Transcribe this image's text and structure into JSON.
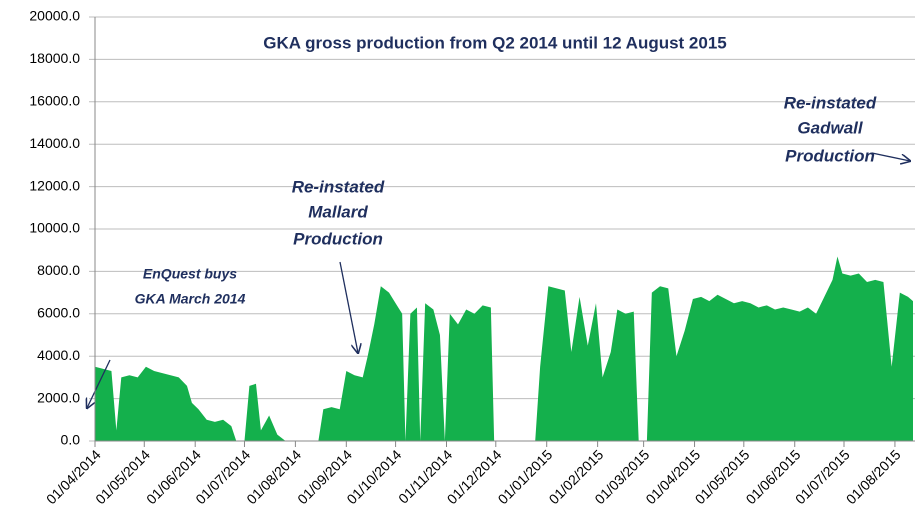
{
  "chart_data": {
    "type": "area",
    "title": "GKA gross production from Q2 2014 until 12 August 2015",
    "color": "#14b04c",
    "grid": true,
    "ylim": [
      0,
      20000
    ],
    "yticks": [
      {
        "value": 0,
        "label": "0.0"
      },
      {
        "value": 2000,
        "label": "2000.0"
      },
      {
        "value": 4000,
        "label": "4000.0"
      },
      {
        "value": 6000,
        "label": "6000.0"
      },
      {
        "value": 8000,
        "label": "8000.0"
      },
      {
        "value": 10000,
        "label": "10000.0"
      },
      {
        "value": 12000,
        "label": "12000.0"
      },
      {
        "value": 14000,
        "label": "14000.0"
      },
      {
        "value": 16000,
        "label": "16000.0"
      },
      {
        "value": 18000,
        "label": "18000.0"
      },
      {
        "value": 20000,
        "label": "20000.0"
      }
    ],
    "xlim": [
      "01/04/2014",
      "12/08/2015"
    ],
    "xticks": [
      "01/04/2014",
      "01/05/2014",
      "01/06/2014",
      "01/07/2014",
      "01/08/2014",
      "01/09/2014",
      "01/10/2014",
      "01/11/2014",
      "01/12/2014",
      "01/01/2015",
      "01/02/2015",
      "01/03/2015",
      "01/04/2015",
      "01/05/2015",
      "01/06/2015",
      "01/07/2015",
      "01/08/2015"
    ],
    "annotations": [
      {
        "lines": [
          "EnQuest buys",
          "GKA March 2014"
        ]
      },
      {
        "lines": [
          "Re-instated",
          "Mallard",
          "Production"
        ]
      },
      {
        "lines": [
          "Re-instated",
          "Gadwall",
          "Production"
        ]
      }
    ],
    "x": [
      "01/04/2014",
      "06/04/2014",
      "11/04/2014",
      "14/04/2014",
      "17/04/2014",
      "22/04/2014",
      "27/04/2014",
      "02/05/2014",
      "07/05/2014",
      "12/05/2014",
      "17/05/2014",
      "22/05/2014",
      "27/05/2014",
      "30/05/2014",
      "03/06/2014",
      "08/06/2014",
      "13/06/2014",
      "18/06/2014",
      "23/06/2014",
      "26/06/2014",
      "01/07/2014",
      "04/07/2014",
      "08/07/2014",
      "11/07/2014",
      "16/07/2014",
      "21/07/2014",
      "26/07/2014",
      "01/08/2014",
      "15/08/2014",
      "18/08/2014",
      "23/08/2014",
      "28/08/2014",
      "01/09/2014",
      "06/09/2014",
      "11/09/2014",
      "14/09/2014",
      "18/09/2014",
      "22/09/2014",
      "27/09/2014",
      "01/10/2014",
      "05/10/2014",
      "07/10/2014",
      "10/10/2014",
      "14/10/2014",
      "16/10/2014",
      "19/10/2014",
      "24/10/2014",
      "28/10/2014",
      "31/10/2014",
      "03/11/2014",
      "08/11/2014",
      "13/11/2014",
      "18/11/2014",
      "23/11/2014",
      "28/11/2014",
      "30/11/2014",
      "25/12/2014",
      "28/12/2014",
      "02/01/2015",
      "07/01/2015",
      "12/01/2015",
      "16/01/2015",
      "21/01/2015",
      "26/01/2015",
      "31/01/2015",
      "04/02/2015",
      "09/02/2015",
      "13/02/2015",
      "18/02/2015",
      "23/02/2015",
      "26/02/2015",
      "03/03/2015",
      "06/03/2015",
      "11/03/2015",
      "16/03/2015",
      "21/03/2015",
      "26/03/2015",
      "31/03/2015",
      "05/04/2015",
      "10/04/2015",
      "15/04/2015",
      "20/04/2015",
      "25/04/2015",
      "30/04/2015",
      "05/05/2015",
      "10/05/2015",
      "15/05/2015",
      "20/05/2015",
      "25/05/2015",
      "30/05/2015",
      "04/06/2015",
      "09/06/2015",
      "14/06/2015",
      "19/06/2015",
      "24/06/2015",
      "27/06/2015",
      "30/06/2015",
      "05/07/2015",
      "10/07/2015",
      "15/07/2015",
      "20/07/2015",
      "25/07/2015",
      "30/07/2015",
      "04/08/2015",
      "09/08/2015",
      "12/08/2015"
    ],
    "values": [
      3500,
      3400,
      3300,
      500,
      3000,
      3100,
      3000,
      3500,
      3300,
      3200,
      3100,
      3000,
      2600,
      1800,
      1500,
      1000,
      900,
      1000,
      700,
      0,
      0,
      2600,
      2700,
      500,
      1200,
      300,
      0,
      0,
      0,
      1500,
      1600,
      1500,
      3300,
      3100,
      3000,
      4000,
      5500,
      7300,
      7000,
      6500,
      6000,
      0,
      6000,
      6300,
      0,
      6500,
      6200,
      5000,
      0,
      6000,
      5500,
      6200,
      6000,
      6400,
      6300,
      0,
      0,
      3500,
      7300,
      7200,
      7100,
      4200,
      6800,
      4500,
      6500,
      3000,
      4200,
      6200,
      6000,
      6100,
      0,
      0,
      7000,
      7300,
      7200,
      4000,
      5200,
      6700,
      6800,
      6600,
      6900,
      6700,
      6500,
      6600,
      6500,
      6300,
      6400,
      6200,
      6300,
      6200,
      6100,
      6300,
      6000,
      6800,
      7600,
      8700,
      7900,
      7800,
      7900,
      7500,
      7600,
      7500,
      3500,
      7000,
      6800,
      6600
    ]
  }
}
